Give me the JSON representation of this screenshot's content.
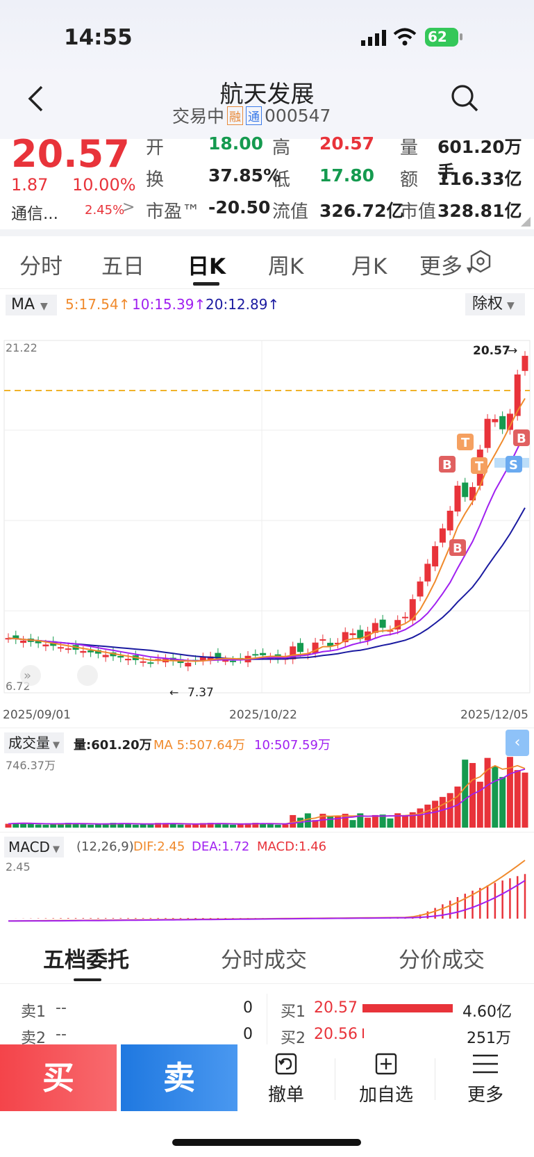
{
  "status_bar": {
    "time": "14:55",
    "battery": "62"
  },
  "header": {
    "title": "航天发展",
    "status": "交易中",
    "tag1": "融",
    "tag2": "通",
    "code": "000547"
  },
  "quote": {
    "price": "20.57",
    "change": "1.87",
    "change_pct": "10.00%",
    "sector": "通信...",
    "sector_pct": "2.45%",
    "fields": [
      {
        "label": "开",
        "value": "18.00",
        "color": "#159a4f"
      },
      {
        "label": "高",
        "value": "20.57",
        "color": "#e8333a"
      },
      {
        "label": "量",
        "value": "601.20万手",
        "color": "#222"
      },
      {
        "label": "换",
        "value": "37.85%",
        "color": "#222"
      },
      {
        "label": "低",
        "value": "17.80",
        "color": "#159a4f"
      },
      {
        "label": "额",
        "value": "116.33亿",
        "color": "#222"
      },
      {
        "label": "市盈™",
        "value": "-20.50",
        "color": "#222"
      },
      {
        "label": "流值",
        "value": "326.72亿",
        "color": "#222"
      },
      {
        "label": "市值",
        "value": "328.81亿",
        "color": "#222"
      }
    ]
  },
  "tabs": [
    "分时",
    "五日",
    "日K",
    "周K",
    "月K",
    "更多"
  ],
  "active_tab": "日K",
  "ma_bar": {
    "selector": "MA",
    "ma5": "5:17.54",
    "ma10": "10:15.39",
    "ma20": "20:12.89",
    "adjust": "除权"
  },
  "kline": {
    "y_max": "21.22",
    "y_min": "6.72",
    "last_label": "20.57",
    "low_label": "7.37",
    "dates": [
      "2025/09/01",
      "2025/10/22",
      "2025/12/05"
    ],
    "colors": {
      "up": "#e8333a",
      "down": "#159a4f",
      "ma5": "#f08a2c",
      "ma10": "#a020f0",
      "ma20": "#1a1aa0"
    }
  },
  "volume": {
    "selector": "成交量",
    "vol": "量:601.20万",
    "ma5": "MA 5:507.64万",
    "ma10": "10:507.59万",
    "max": "746.37万"
  },
  "macd": {
    "selector": "MACD",
    "params": "(12,26,9)",
    "dif": "DIF:2.45",
    "dea": "DEA:1.72",
    "macd": "MACD:1.46",
    "max": "2.45"
  },
  "order_tabs": [
    "五档委托",
    "分时成交",
    "分价成交"
  ],
  "order_book": {
    "sell": [
      {
        "label": "卖1",
        "price": "--",
        "vol": "0"
      },
      {
        "label": "卖2",
        "price": "--",
        "vol": "0"
      }
    ],
    "buy": [
      {
        "label": "买1",
        "price": "20.57",
        "vol": "4.60亿"
      },
      {
        "label": "买2",
        "price": "20.56",
        "vol": "251万"
      }
    ]
  },
  "bottom": {
    "buy": "买",
    "sell": "卖",
    "cancel": "撤单",
    "watch": "加自选",
    "more": "更多"
  }
}
